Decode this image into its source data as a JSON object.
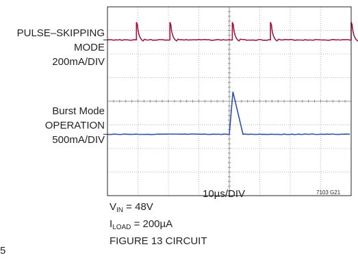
{
  "chart_data": {
    "type": "line",
    "grid": true,
    "x_divisions": 8,
    "y_divisions": 8,
    "x_label": "10µs/DIV",
    "figure_id": "7103 G21",
    "series": [
      {
        "name_lines": [
          "PULSE–SKIPPING",
          "MODE",
          "200mA/DIV"
        ],
        "color": "#a3143c",
        "baseline_div": 6.6,
        "pulse_x_div": [
          0.95,
          2.05,
          4.1,
          5.35,
          8.0
        ],
        "pulse_height_div": 0.75,
        "pulse_decay_div": 0.22
      },
      {
        "name_lines": [
          "Burst Mode",
          "OPERATION",
          "500mA/DIV"
        ],
        "color": "#2f4fa8",
        "baseline_div": 2.6,
        "pulse_start_div": 4.0,
        "pulse_peak_div": 4.12,
        "pulse_end_div": 4.45,
        "pulse_height_div": 1.8
      }
    ]
  },
  "conditions": {
    "vin_main": "V",
    "vin_sub": "IN",
    "vin_value": " = 48V",
    "iload_main": "I",
    "iload_sub": "LOAD",
    "iload_value": " = 200µA",
    "circuit": "FIGURE 13 CIRCUIT"
  },
  "corner_text": "5"
}
